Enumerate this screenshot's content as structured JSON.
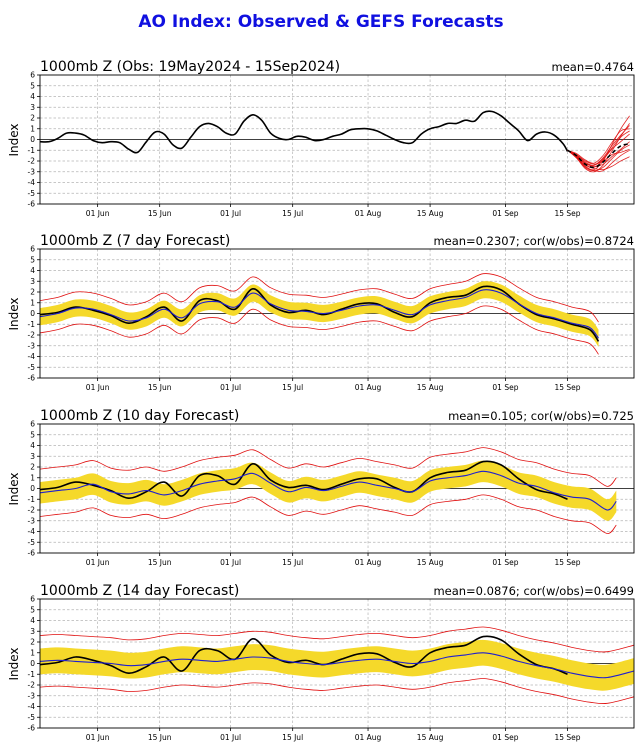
{
  "title": "AO Index: Observed & GEFS Forecasts",
  "colors": {
    "title": "#1010e0",
    "observed": "#000000",
    "forecast_mean": "#1f1fd0",
    "spread_band": "#f5d92a",
    "ensemble_members": "#e01010"
  },
  "chart_data": [
    {
      "type": "line",
      "title": "1000mb Z (Obs: 19May2024 - 15Sep2024)",
      "stats": "mean=0.4764",
      "ylabel": "Index",
      "xlabel": "",
      "ylim": [
        -6,
        6
      ],
      "yticks": [
        -6,
        -5,
        -4,
        -3,
        -2,
        -1,
        0,
        1,
        2,
        3,
        4,
        5,
        6
      ],
      "xlim": [
        "2024-05-19",
        "2024-09-30"
      ],
      "xticks": [
        "01 Jun",
        "15 Jun",
        "01 Jul",
        "15 Jul",
        "01 Aug",
        "15 Aug",
        "01 Sep",
        "15 Sep"
      ],
      "grid": true,
      "series": [
        {
          "kind": "observed",
          "x": [
            "2024-05-19",
            "2024-05-21",
            "2024-05-23",
            "2024-05-25",
            "2024-05-27",
            "2024-05-29",
            "2024-05-31",
            "2024-06-02",
            "2024-06-04",
            "2024-06-06",
            "2024-06-08",
            "2024-06-10",
            "2024-06-12",
            "2024-06-14",
            "2024-06-16",
            "2024-06-18",
            "2024-06-20",
            "2024-06-22",
            "2024-06-24",
            "2024-06-26",
            "2024-06-28",
            "2024-06-30",
            "2024-07-02",
            "2024-07-04",
            "2024-07-06",
            "2024-07-08",
            "2024-07-10",
            "2024-07-12",
            "2024-07-14",
            "2024-07-16",
            "2024-07-18",
            "2024-07-20",
            "2024-07-22",
            "2024-07-24",
            "2024-07-26",
            "2024-07-28",
            "2024-07-30",
            "2024-08-01",
            "2024-08-03",
            "2024-08-05",
            "2024-08-07",
            "2024-08-09",
            "2024-08-11",
            "2024-08-13",
            "2024-08-15",
            "2024-08-17",
            "2024-08-19",
            "2024-08-21",
            "2024-08-23",
            "2024-08-25",
            "2024-08-27",
            "2024-08-29",
            "2024-08-31",
            "2024-09-02",
            "2024-09-04",
            "2024-09-06",
            "2024-09-08",
            "2024-09-10",
            "2024-09-12",
            "2024-09-14",
            "2024-09-15"
          ],
          "y": [
            -0.2,
            -0.2,
            0.1,
            0.6,
            0.6,
            0.4,
            -0.1,
            -0.3,
            -0.2,
            -0.3,
            -0.9,
            -1.2,
            -0.2,
            0.7,
            0.5,
            -0.5,
            -0.8,
            0.2,
            1.2,
            1.5,
            1.2,
            0.6,
            0.5,
            1.7,
            2.3,
            1.8,
            0.6,
            0.1,
            0.0,
            0.3,
            0.2,
            -0.1,
            0.0,
            0.3,
            0.5,
            0.9,
            1.0,
            1.0,
            0.8,
            0.4,
            0.0,
            -0.3,
            -0.3,
            0.5,
            1.0,
            1.2,
            1.5,
            1.5,
            1.8,
            1.7,
            2.5,
            2.6,
            2.2,
            1.5,
            0.8,
            -0.1,
            0.5,
            0.7,
            0.4,
            -0.4,
            -1.1
          ]
        }
      ],
      "gefs_ensemble": {
        "start": "2024-09-15",
        "x": [
          "2024-09-15",
          "2024-09-17",
          "2024-09-19",
          "2024-09-21",
          "2024-09-23",
          "2024-09-25",
          "2024-09-27",
          "2024-09-29"
        ],
        "mean": [
          -1.0,
          -1.5,
          -2.3,
          -2.6,
          -2.1,
          -1.3,
          -0.6,
          -0.4
        ],
        "members": [
          [
            -1.0,
            -1.7,
            -2.5,
            -2.8,
            -2.0,
            -0.5,
            1.0,
            2.2
          ],
          [
            -1.0,
            -1.4,
            -2.1,
            -2.4,
            -1.8,
            -0.8,
            0.3,
            1.5
          ],
          [
            -1.0,
            -1.6,
            -2.6,
            -2.9,
            -2.6,
            -1.8,
            -1.0,
            -0.5
          ],
          [
            -1.0,
            -1.5,
            -2.2,
            -2.5,
            -2.3,
            -1.6,
            -0.9,
            -0.2
          ],
          [
            -1.0,
            -1.3,
            -1.9,
            -2.2,
            -1.5,
            -0.3,
            0.8,
            1.0
          ],
          [
            -1.0,
            -1.6,
            -2.4,
            -2.7,
            -2.8,
            -2.5,
            -2.0,
            -1.6
          ],
          [
            -1.0,
            -1.5,
            -2.3,
            -2.6,
            -1.9,
            -0.9,
            -0.2,
            0.5
          ],
          [
            -1.0,
            -1.4,
            -2.0,
            -2.3,
            -2.0,
            -1.4,
            -1.2,
            -0.9
          ],
          [
            -1.0,
            -1.7,
            -2.7,
            -3.0,
            -2.4,
            -1.1,
            0.2,
            0.8
          ],
          [
            -1.0,
            -1.5,
            -2.2,
            -2.4,
            -1.7,
            -0.6,
            0.4,
            1.3
          ],
          [
            -1.0,
            -1.6,
            -2.5,
            -2.9,
            -2.9,
            -2.2,
            -1.5,
            -1.0
          ]
        ]
      }
    },
    {
      "type": "line",
      "title": "1000mb Z (7 day Forecast)",
      "stats": "mean=0.2307; cor(w/obs)=0.8724",
      "ylabel": "Index",
      "xlabel": "",
      "ylim": [
        -6,
        6
      ],
      "yticks": [
        -6,
        -5,
        -4,
        -3,
        -2,
        -1,
        0,
        1,
        2,
        3,
        4,
        5,
        6
      ],
      "xlim": [
        "2024-05-19",
        "2024-09-30"
      ],
      "xticks": [
        "01 Jun",
        "15 Jun",
        "01 Jul",
        "15 Jul",
        "01 Aug",
        "15 Aug",
        "01 Sep",
        "15 Sep"
      ],
      "grid": true,
      "series": [
        {
          "kind": "observed",
          "x": [
            "2024-05-19",
            "2024-05-23",
            "2024-05-27",
            "2024-05-31",
            "2024-06-04",
            "2024-06-08",
            "2024-06-12",
            "2024-06-16",
            "2024-06-20",
            "2024-06-24",
            "2024-06-28",
            "2024-07-02",
            "2024-07-06",
            "2024-07-10",
            "2024-07-14",
            "2024-07-18",
            "2024-07-22",
            "2024-07-26",
            "2024-07-30",
            "2024-08-03",
            "2024-08-07",
            "2024-08-11",
            "2024-08-15",
            "2024-08-19",
            "2024-08-23",
            "2024-08-27",
            "2024-08-31",
            "2024-09-04",
            "2024-09-08",
            "2024-09-12",
            "2024-09-16",
            "2024-09-20",
            "2024-09-22"
          ],
          "y": [
            -0.1,
            0.1,
            0.6,
            0.3,
            -0.2,
            -0.9,
            -0.3,
            0.6,
            -0.7,
            1.2,
            1.2,
            0.4,
            2.3,
            0.8,
            0.1,
            0.3,
            -0.1,
            0.4,
            0.9,
            0.9,
            0.1,
            -0.3,
            1.0,
            1.5,
            1.7,
            2.5,
            2.2,
            0.9,
            -0.1,
            -0.5,
            -1.0,
            -1.5,
            -2.6
          ]
        },
        {
          "kind": "forecast_mean",
          "x": [
            "2024-05-19",
            "2024-05-23",
            "2024-05-27",
            "2024-05-31",
            "2024-06-04",
            "2024-06-08",
            "2024-06-12",
            "2024-06-16",
            "2024-06-20",
            "2024-06-24",
            "2024-06-28",
            "2024-07-02",
            "2024-07-06",
            "2024-07-10",
            "2024-07-14",
            "2024-07-18",
            "2024-07-22",
            "2024-07-26",
            "2024-07-30",
            "2024-08-03",
            "2024-08-07",
            "2024-08-11",
            "2024-08-15",
            "2024-08-19",
            "2024-08-23",
            "2024-08-27",
            "2024-08-31",
            "2024-09-04",
            "2024-09-08",
            "2024-09-12",
            "2024-09-16",
            "2024-09-20",
            "2024-09-22"
          ],
          "y": [
            -0.3,
            0.0,
            0.5,
            0.4,
            -0.1,
            -0.7,
            -0.4,
            0.4,
            -0.4,
            0.9,
            1.1,
            0.6,
            1.9,
            0.9,
            0.3,
            0.2,
            0.0,
            0.3,
            0.7,
            0.8,
            0.3,
            -0.1,
            0.8,
            1.2,
            1.5,
            2.2,
            1.9,
            0.9,
            0.0,
            -0.4,
            -0.9,
            -1.3,
            -2.3
          ]
        }
      ],
      "spread": {
        "band_halfwidth": 0.8,
        "envelope_halfwidth": 1.5
      }
    },
    {
      "type": "line",
      "title": "1000mb Z (10 day Forecast)",
      "stats": "mean=0.105; cor(w/obs)=0.725",
      "ylabel": "Index",
      "xlabel": "",
      "ylim": [
        -6,
        6
      ],
      "yticks": [
        -6,
        -5,
        -4,
        -3,
        -2,
        -1,
        0,
        1,
        2,
        3,
        4,
        5,
        6
      ],
      "xlim": [
        "2024-05-19",
        "2024-09-30"
      ],
      "xticks": [
        "01 Jun",
        "15 Jun",
        "01 Jul",
        "15 Jul",
        "01 Aug",
        "15 Aug",
        "01 Sep",
        "15 Sep"
      ],
      "grid": true,
      "series": [
        {
          "kind": "observed",
          "x": [
            "2024-05-19",
            "2024-05-23",
            "2024-05-27",
            "2024-05-31",
            "2024-06-04",
            "2024-06-08",
            "2024-06-12",
            "2024-06-16",
            "2024-06-20",
            "2024-06-24",
            "2024-06-28",
            "2024-07-02",
            "2024-07-06",
            "2024-07-10",
            "2024-07-14",
            "2024-07-18",
            "2024-07-22",
            "2024-07-26",
            "2024-07-30",
            "2024-08-03",
            "2024-08-07",
            "2024-08-11",
            "2024-08-15",
            "2024-08-19",
            "2024-08-23",
            "2024-08-27",
            "2024-08-31",
            "2024-09-04",
            "2024-09-08",
            "2024-09-12",
            "2024-09-15"
          ],
          "y": [
            -0.1,
            0.1,
            0.6,
            0.3,
            -0.2,
            -0.9,
            -0.3,
            0.6,
            -0.7,
            1.2,
            1.2,
            0.4,
            2.3,
            0.8,
            0.1,
            0.3,
            -0.1,
            0.4,
            0.9,
            0.9,
            0.1,
            -0.3,
            1.0,
            1.5,
            1.7,
            2.5,
            2.2,
            0.9,
            -0.1,
            -0.5,
            -1.0
          ]
        },
        {
          "kind": "forecast_mean",
          "x": [
            "2024-05-19",
            "2024-05-23",
            "2024-05-27",
            "2024-05-31",
            "2024-06-04",
            "2024-06-08",
            "2024-06-12",
            "2024-06-16",
            "2024-06-20",
            "2024-06-24",
            "2024-06-28",
            "2024-07-02",
            "2024-07-06",
            "2024-07-10",
            "2024-07-14",
            "2024-07-18",
            "2024-07-22",
            "2024-07-26",
            "2024-07-30",
            "2024-08-03",
            "2024-08-07",
            "2024-08-11",
            "2024-08-15",
            "2024-08-19",
            "2024-08-23",
            "2024-08-27",
            "2024-08-31",
            "2024-09-04",
            "2024-09-08",
            "2024-09-12",
            "2024-09-16",
            "2024-09-20",
            "2024-09-24",
            "2024-09-26"
          ],
          "y": [
            -0.4,
            -0.2,
            0.0,
            0.4,
            -0.3,
            -0.5,
            -0.2,
            -0.6,
            -0.2,
            0.4,
            0.7,
            0.9,
            1.4,
            0.5,
            -0.3,
            0.1,
            -0.2,
            0.2,
            0.6,
            0.3,
            0.0,
            -0.3,
            0.7,
            1.0,
            1.2,
            1.6,
            1.2,
            0.5,
            0.2,
            -0.4,
            -0.8,
            -1.0,
            -2.0,
            -1.2
          ]
        }
      ],
      "spread": {
        "band_halfwidth": 1.0,
        "envelope_halfwidth": 2.2
      }
    },
    {
      "type": "line",
      "title": "1000mb Z (14 day Forecast)",
      "stats": "mean=0.0876; cor(w/obs)=0.6499",
      "ylabel": "Index",
      "xlabel": "",
      "ylim": [
        -6,
        6
      ],
      "yticks": [
        -6,
        -5,
        -4,
        -3,
        -2,
        -1,
        0,
        1,
        2,
        3,
        4,
        5,
        6
      ],
      "xlim": [
        "2024-05-19",
        "2024-09-30"
      ],
      "xticks": [
        "01 Jun",
        "15 Jun",
        "01 Jul",
        "15 Jul",
        "01 Aug",
        "15 Aug",
        "01 Sep",
        "15 Sep"
      ],
      "grid": true,
      "series": [
        {
          "kind": "observed",
          "x": [
            "2024-05-19",
            "2024-05-23",
            "2024-05-27",
            "2024-05-31",
            "2024-06-04",
            "2024-06-08",
            "2024-06-12",
            "2024-06-16",
            "2024-06-20",
            "2024-06-24",
            "2024-06-28",
            "2024-07-02",
            "2024-07-06",
            "2024-07-10",
            "2024-07-14",
            "2024-07-18",
            "2024-07-22",
            "2024-07-26",
            "2024-07-30",
            "2024-08-03",
            "2024-08-07",
            "2024-08-11",
            "2024-08-15",
            "2024-08-19",
            "2024-08-23",
            "2024-08-27",
            "2024-08-31",
            "2024-09-04",
            "2024-09-08",
            "2024-09-12",
            "2024-09-15"
          ],
          "y": [
            -0.1,
            0.1,
            0.6,
            0.3,
            -0.2,
            -0.9,
            -0.3,
            0.6,
            -0.7,
            1.2,
            1.2,
            0.4,
            2.3,
            0.8,
            0.1,
            0.3,
            -0.1,
            0.4,
            0.9,
            0.9,
            0.1,
            -0.3,
            1.0,
            1.5,
            1.7,
            2.5,
            2.2,
            0.9,
            -0.1,
            -0.5,
            -1.0
          ]
        },
        {
          "kind": "forecast_mean",
          "x": [
            "2024-05-19",
            "2024-05-23",
            "2024-05-27",
            "2024-05-31",
            "2024-06-04",
            "2024-06-08",
            "2024-06-12",
            "2024-06-16",
            "2024-06-20",
            "2024-06-24",
            "2024-06-28",
            "2024-07-02",
            "2024-07-06",
            "2024-07-10",
            "2024-07-14",
            "2024-07-18",
            "2024-07-22",
            "2024-07-26",
            "2024-07-30",
            "2024-08-03",
            "2024-08-07",
            "2024-08-11",
            "2024-08-15",
            "2024-08-19",
            "2024-08-23",
            "2024-08-27",
            "2024-08-31",
            "2024-09-04",
            "2024-09-08",
            "2024-09-12",
            "2024-09-16",
            "2024-09-20",
            "2024-09-24",
            "2024-09-30"
          ],
          "y": [
            0.2,
            0.3,
            0.2,
            0.1,
            0.0,
            -0.2,
            -0.1,
            0.2,
            0.4,
            0.3,
            0.2,
            0.4,
            0.6,
            0.5,
            0.2,
            0.0,
            -0.1,
            0.1,
            0.3,
            0.4,
            0.2,
            0.0,
            0.2,
            0.6,
            0.8,
            1.0,
            0.7,
            0.2,
            -0.2,
            -0.5,
            -0.9,
            -1.2,
            -1.3,
            -0.7
          ]
        }
      ],
      "spread": {
        "band_halfwidth": 1.2,
        "envelope_halfwidth": 2.4
      }
    }
  ]
}
